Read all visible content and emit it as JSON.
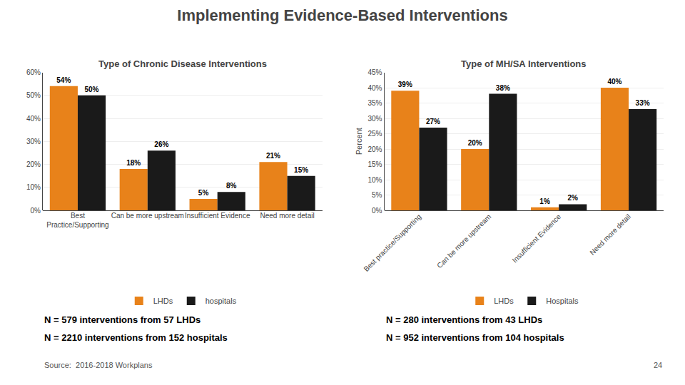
{
  "title": "Implementing Evidence-Based Interventions",
  "chart_data": [
    {
      "type": "bar",
      "title": "Type of Chronic Disease Interventions",
      "categories": [
        "Best\nPractice/Supporting",
        "Can be more upstream",
        "Insufficient Evidence",
        "Need more detail"
      ],
      "series": [
        {
          "name": "LHDs",
          "color": "#E8821A",
          "values": [
            54,
            18,
            5,
            21
          ],
          "value_labels": [
            "54%",
            "18%",
            "5%",
            "21%"
          ]
        },
        {
          "name": "hospitals",
          "color": "#1A1A1A",
          "values": [
            50,
            26,
            8,
            15
          ],
          "value_labels": [
            "50%",
            "26%",
            "8%",
            "15%"
          ]
        }
      ],
      "ylim": [
        0,
        60
      ],
      "yticks": [
        {
          "value": 0,
          "label": "0%"
        },
        {
          "value": 10,
          "label": "10%"
        },
        {
          "value": 20,
          "label": "20%"
        },
        {
          "value": 30,
          "label": "30%"
        },
        {
          "value": 40,
          "label": "40%"
        },
        {
          "value": 50,
          "label": "50%"
        },
        {
          "value": 60,
          "label": "60%"
        }
      ],
      "grid": true,
      "data_labels": true,
      "annotations": [
        "N = 579 interventions from 57 LHDs",
        "N = 2210 interventions from 152 hospitals"
      ]
    },
    {
      "type": "bar",
      "title": "Type of MH/SA Interventions",
      "categories": [
        "Best practice/Supporting",
        "Can be more upstream",
        "Insufficient Evidence",
        "Need more detail"
      ],
      "series": [
        {
          "name": "LHDs",
          "color": "#E8821A",
          "values": [
            39,
            20,
            1,
            40
          ],
          "value_labels": [
            "39%",
            "20%",
            "1%",
            "40%"
          ]
        },
        {
          "name": "Hospitals",
          "color": "#1A1A1A",
          "values": [
            27,
            38,
            2,
            33
          ],
          "value_labels": [
            "27%",
            "38%",
            "2%",
            "33%"
          ]
        }
      ],
      "ylim": [
        0,
        45
      ],
      "yticks": [
        {
          "value": 0,
          "label": "0%"
        },
        {
          "value": 5,
          "label": "5%"
        },
        {
          "value": 10,
          "label": "10%"
        },
        {
          "value": 15,
          "label": "15%"
        },
        {
          "value": 20,
          "label": "20%"
        },
        {
          "value": 25,
          "label": "25%"
        },
        {
          "value": 30,
          "label": "30%"
        },
        {
          "value": 35,
          "label": "35%"
        },
        {
          "value": 40,
          "label": "40%"
        },
        {
          "value": 45,
          "label": "45%"
        }
      ],
      "ylabel": "Percent",
      "grid": true,
      "data_labels": true,
      "annotations": [
        "N = 280 interventions from 43 LHDs",
        "N = 952 interventions from 104 hospitals"
      ]
    }
  ],
  "annotations": [
    "Source:  2016-2018 Workplans",
    "24"
  ]
}
